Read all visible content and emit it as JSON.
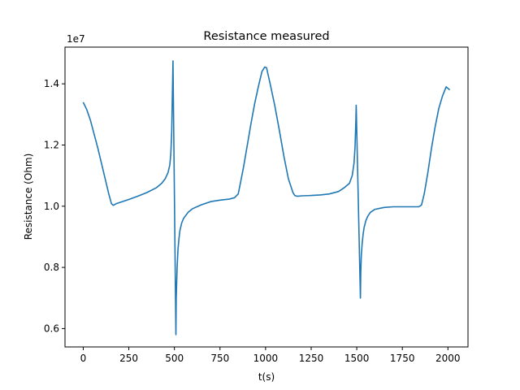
{
  "chart_data": {
    "type": "line",
    "title": "Resistance measured",
    "xlabel": "t(s)",
    "ylabel": "Resistance (Ohm)",
    "y_scale_note": "1e7",
    "xlim": [
      -100,
      2110
    ],
    "ylim": [
      0.54,
      1.52
    ],
    "x_ticks": [
      0,
      250,
      500,
      750,
      1000,
      1250,
      1500,
      1750,
      2000
    ],
    "x_tick_labels": [
      "0",
      "250",
      "500",
      "750",
      "1000",
      "1250",
      "1500",
      "1750",
      "2000"
    ],
    "y_ticks": [
      0.6,
      0.8,
      1.0,
      1.2,
      1.4
    ],
    "y_tick_labels": [
      "0.6",
      "0.8",
      "1.0",
      "1.2",
      "1.4"
    ],
    "grid": false,
    "line_color": "#1f77b4",
    "series": [
      {
        "x": [
          0,
          20,
          40,
          60,
          80,
          100,
          120,
          140,
          155,
          165,
          180,
          200,
          250,
          300,
          350,
          400,
          430,
          450,
          465,
          475,
          480,
          485,
          490,
          492,
          508,
          510,
          515,
          520,
          525,
          530,
          540,
          550,
          575,
          600,
          650,
          700,
          750,
          800,
          830,
          850,
          860,
          880,
          900,
          920,
          940,
          960,
          980,
          995,
          1005,
          1010,
          1025,
          1050,
          1075,
          1100,
          1125,
          1150,
          1160,
          1170,
          1180,
          1200,
          1250,
          1300,
          1350,
          1400,
          1430,
          1460,
          1475,
          1485,
          1490,
          1495,
          1497,
          1520,
          1522,
          1525,
          1530,
          1535,
          1540,
          1550,
          1560,
          1575,
          1600,
          1650,
          1700,
          1750,
          1800,
          1840,
          1855,
          1870,
          1890,
          1910,
          1930,
          1950,
          1970,
          1990,
          2010
        ],
        "y": [
          1.34,
          1.315,
          1.28,
          1.235,
          1.19,
          1.14,
          1.09,
          1.04,
          1.008,
          1.003,
          1.008,
          1.012,
          1.022,
          1.033,
          1.045,
          1.06,
          1.075,
          1.09,
          1.11,
          1.135,
          1.17,
          1.24,
          1.4,
          1.475,
          0.58,
          0.7,
          0.8,
          0.86,
          0.895,
          0.92,
          0.945,
          0.96,
          0.98,
          0.992,
          1.005,
          1.015,
          1.02,
          1.023,
          1.028,
          1.04,
          1.07,
          1.13,
          1.2,
          1.27,
          1.335,
          1.39,
          1.44,
          1.455,
          1.453,
          1.44,
          1.4,
          1.33,
          1.25,
          1.165,
          1.09,
          1.045,
          1.035,
          1.033,
          1.033,
          1.034,
          1.035,
          1.037,
          1.04,
          1.048,
          1.06,
          1.075,
          1.1,
          1.14,
          1.19,
          1.28,
          1.33,
          0.7,
          0.78,
          0.84,
          0.88,
          0.91,
          0.93,
          0.953,
          0.967,
          0.98,
          0.99,
          0.996,
          0.998,
          0.998,
          0.998,
          0.998,
          1.004,
          1.04,
          1.11,
          1.19,
          1.26,
          1.32,
          1.36,
          1.39,
          1.38
        ]
      }
    ]
  }
}
